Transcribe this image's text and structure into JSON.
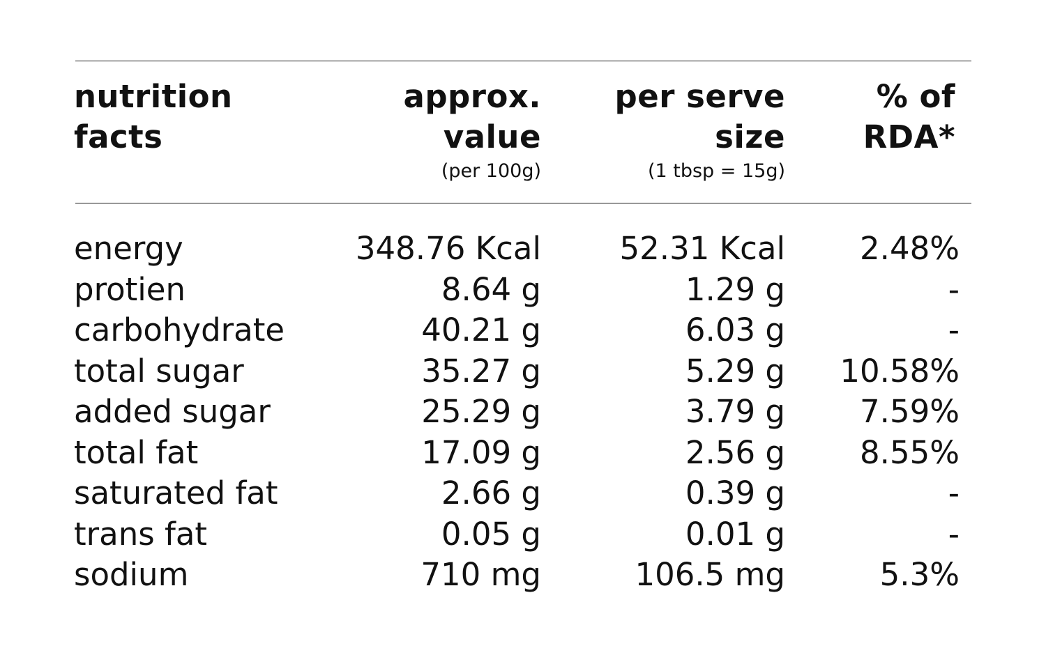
{
  "header": {
    "col1": [
      "nutrition",
      "facts"
    ],
    "col2": {
      "lines": [
        "approx.",
        "value"
      ],
      "sub": "(per 100g)"
    },
    "col3": {
      "lines": [
        "per serve",
        "size"
      ],
      "sub": "(1 tbsp = 15g)"
    },
    "col4": [
      "% of",
      "RDA*"
    ]
  },
  "rows": [
    {
      "name": "energy",
      "per100": "348.76 Kcal",
      "perServe": "52.31 Kcal",
      "rda": "2.48%"
    },
    {
      "name": "protien",
      "per100": "8.64 g",
      "perServe": "1.29 g",
      "rda": "-"
    },
    {
      "name": "carbohydrate",
      "per100": "40.21 g",
      "perServe": "6.03 g",
      "rda": "-"
    },
    {
      "name": "total sugar",
      "per100": "35.27 g",
      "perServe": "5.29 g",
      "rda": "10.58%"
    },
    {
      "name": "added sugar",
      "per100": "25.29 g",
      "perServe": "3.79 g",
      "rda": "7.59%"
    },
    {
      "name": "total fat",
      "per100": "17.09 g",
      "perServe": "2.56 g",
      "rda": "8.55%"
    },
    {
      "name": "saturated fat",
      "per100": "2.66 g",
      "perServe": "0.39 g",
      "rda": "-"
    },
    {
      "name": "trans fat",
      "per100": "0.05 g",
      "perServe": "0.01 g",
      "rda": "-"
    },
    {
      "name": "sodium",
      "per100": "710 mg",
      "perServe": "106.5 mg",
      "rda": "5.3%"
    }
  ]
}
